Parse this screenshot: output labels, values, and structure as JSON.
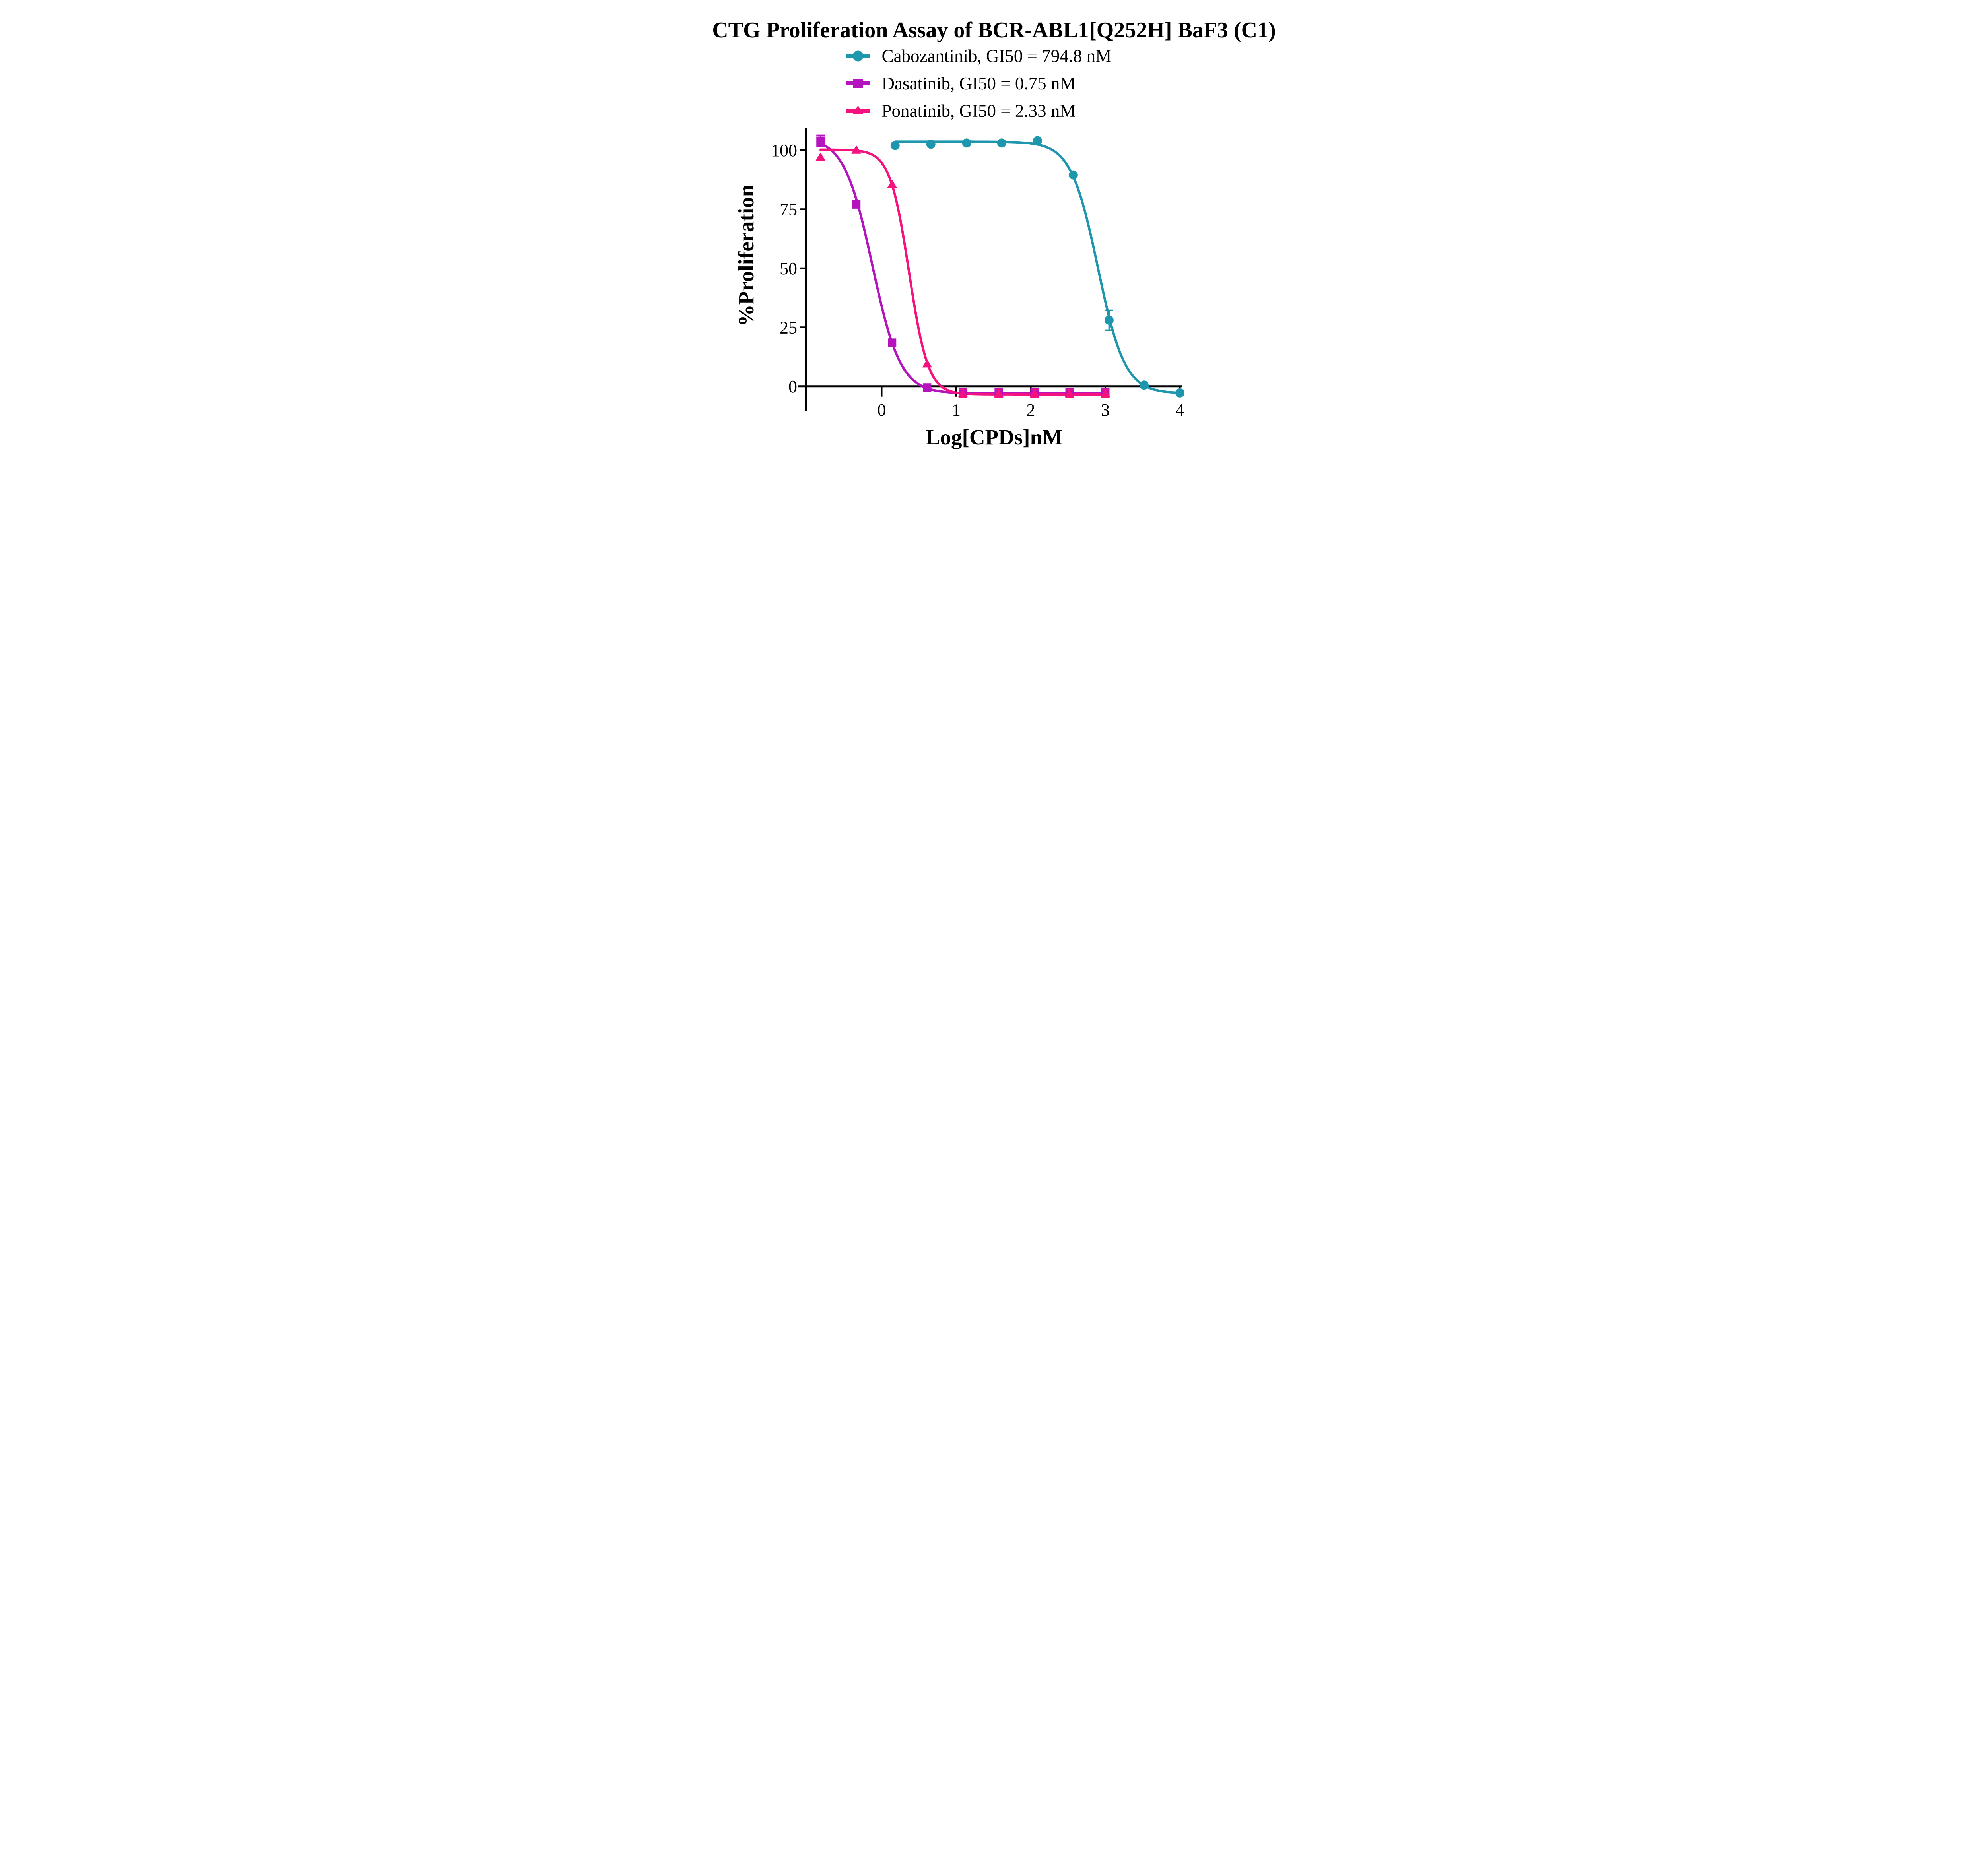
{
  "title": "CTG Proliferation Assay of BCR-ABL1[Q252H] BaF3 (C1)",
  "chart_data": {
    "type": "line",
    "title": "CTG Proliferation Assay of BCR-ABL1[Q252H] BaF3 (C1)",
    "xlabel": "Log[CPDs]nM",
    "ylabel": "%Proliferation",
    "x_ticks": [
      0,
      1,
      2,
      3,
      4
    ],
    "y_ticks": [
      0,
      25,
      50,
      75,
      100
    ],
    "xlim": [
      -1.01,
      4.04
    ],
    "ylim": [
      -10.5,
      109.5
    ],
    "grid": false,
    "legend_position": "top-center",
    "series": [
      {
        "name": "Cabozantinib",
        "legend_label": "Cabozantinib, GI50 = 794.8 nM",
        "gi50_nM": 794.8,
        "color": "#1E97AE",
        "marker": "circle",
        "x": [
          0.18,
          0.66,
          1.14,
          1.61,
          2.09,
          2.57,
          3.05,
          3.52,
          4.0
        ],
        "y": [
          102,
          102.5,
          103,
          103,
          104,
          89.5,
          28,
          0.5,
          -2.8
        ],
        "err": [
          0,
          0,
          0,
          0,
          0,
          0,
          4.2,
          0,
          0
        ],
        "fit": {
          "top": 103.6,
          "bottom": -3.0,
          "log_gi50": 2.9,
          "hill": 2.4
        },
        "curve_range": [
          0.18,
          4.0
        ]
      },
      {
        "name": "Dasatinib",
        "legend_label": "Dasatinib, GI50 = 0.75 nM",
        "gi50_nM": 0.75,
        "color": "#B413BE",
        "marker": "square",
        "x": [
          -0.82,
          -0.34,
          0.14,
          0.61,
          1.09,
          1.57,
          2.05,
          2.52,
          3.0
        ],
        "y": [
          104,
          77,
          18.5,
          -0.5,
          -2.8,
          -2.8,
          -2.8,
          -2.8,
          -2.8
        ],
        "err": [
          2.3,
          0,
          0,
          0,
          1.9,
          1.9,
          1.9,
          1.9,
          1.9
        ],
        "fit": {
          "top": 105.5,
          "bottom": -3.0,
          "log_gi50": -0.125,
          "hill": 2.3
        },
        "curve_range": [
          -0.82,
          3.0
        ]
      },
      {
        "name": "Ponatinib",
        "legend_label": "Ponatinib, GI50 = 2.33 nM",
        "gi50_nM": 2.33,
        "color": "#F5117E",
        "marker": "triangle",
        "x": [
          -0.82,
          -0.34,
          0.14,
          0.61,
          1.09,
          1.57,
          2.05,
          2.52,
          3.0
        ],
        "y": [
          97,
          100,
          85.5,
          9.5,
          -3.1,
          -3.1,
          -3.1,
          -3.1,
          -3.1
        ],
        "err": [
          0,
          0,
          0,
          0,
          1.7,
          1.7,
          1.7,
          1.7,
          1.7
        ],
        "fit": {
          "top": 100.2,
          "bottom": -3.4,
          "log_gi50": 0.367,
          "hill": 3.4
        },
        "curve_range": [
          -0.82,
          3.0
        ]
      }
    ]
  }
}
